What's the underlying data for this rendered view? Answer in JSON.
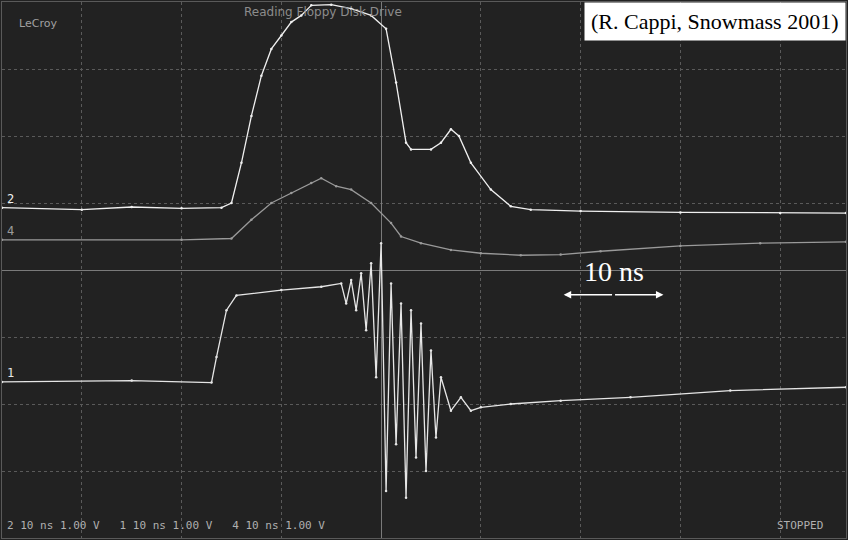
{
  "chart_data": {
    "type": "line",
    "title": "Reading Floppy Disk Drive",
    "brand": "LeCroy",
    "credit": "(R. Cappi, Snowmass 2001)",
    "status": "STOPPED",
    "channel_settings": [
      "2 10 ns 1.00 V",
      "1 10 ns 1.00 V",
      "4 10 ns 1.00 V"
    ],
    "scale_bar": {
      "label": "10 ns",
      "value": 10
    },
    "xlim": [
      -38,
      46.6
    ],
    "xticks": [
      -30,
      -20,
      -10,
      0,
      10,
      20,
      30,
      40
    ],
    "ylim": [
      -4,
      4
    ],
    "yticks": [
      -4,
      -3,
      -2,
      -1,
      0,
      1,
      2,
      3,
      4
    ],
    "grid": true,
    "tick_labels": false,
    "series": [
      {
        "name": "2",
        "color": "#f0f0f0",
        "x": [
          -38,
          -30,
          -25,
          -20,
          -16,
          -15,
          -14,
          -13,
          -12,
          -11,
          -10,
          -9,
          -8,
          -7,
          -5,
          -3,
          -1,
          0.5,
          1.5,
          2.5,
          3,
          5,
          6,
          7,
          7.8,
          9,
          11,
          13,
          15,
          20,
          30,
          40,
          46.6
        ],
        "values": [
          0.93,
          0.9,
          0.94,
          0.92,
          0.93,
          1.0,
          1.6,
          2.3,
          2.9,
          3.3,
          3.5,
          3.7,
          3.8,
          3.95,
          3.96,
          3.9,
          3.8,
          3.6,
          2.8,
          1.9,
          1.8,
          1.8,
          1.9,
          2.1,
          2.0,
          1.6,
          1.2,
          0.95,
          0.9,
          0.88,
          0.86,
          0.85,
          0.85
        ]
      },
      {
        "name": "4",
        "color": "#9a9a9a",
        "x": [
          -38,
          -20,
          -15,
          -13,
          -11,
          -9,
          -7,
          -6,
          -4.5,
          -3,
          -1,
          1,
          2,
          4,
          7,
          10,
          14,
          18,
          22,
          30,
          38,
          46.6
        ],
        "values": [
          0.45,
          0.45,
          0.47,
          0.75,
          1.0,
          1.15,
          1.3,
          1.37,
          1.25,
          1.2,
          1.0,
          0.7,
          0.5,
          0.4,
          0.3,
          0.25,
          0.22,
          0.23,
          0.28,
          0.36,
          0.4,
          0.42
        ]
      },
      {
        "name": "1",
        "color": "#e6e6e6",
        "x": [
          -38,
          -25,
          -17,
          -16.5,
          -15.5,
          -14.5,
          -10,
          -6,
          -4,
          -3.5,
          -3,
          -2.5,
          -2,
          -1.5,
          -1,
          -0.5,
          0,
          0.5,
          1,
          1.5,
          2,
          2.5,
          3,
          3.5,
          4,
          4.5,
          5,
          5.5,
          6,
          7,
          8,
          9,
          10,
          13,
          18,
          25,
          35,
          46.6
        ],
        "values": [
          -1.67,
          -1.65,
          -1.68,
          -1.3,
          -0.6,
          -0.38,
          -0.3,
          -0.25,
          -0.2,
          -0.5,
          -0.15,
          -0.6,
          -0.05,
          -0.9,
          0.1,
          -1.6,
          0.4,
          -3.3,
          -0.2,
          -2.6,
          -0.5,
          -3.4,
          -0.6,
          -2.8,
          -0.8,
          -3.0,
          -1.2,
          -2.5,
          -1.6,
          -2.1,
          -1.9,
          -2.1,
          -2.05,
          -2.0,
          -1.95,
          -1.9,
          -1.8,
          -1.75
        ]
      }
    ]
  }
}
